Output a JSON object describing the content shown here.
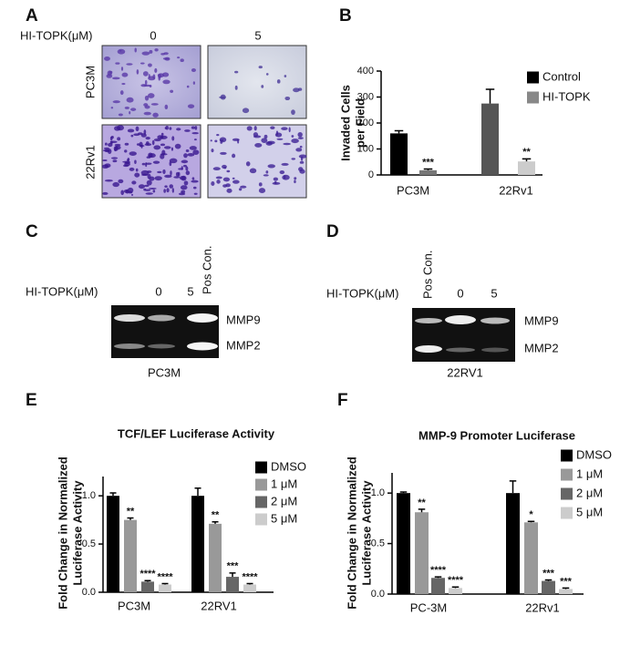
{
  "panels": {
    "A": {
      "letter": "A",
      "treatment_label": "HI-TOPK(μM)",
      "doses": [
        "0",
        "5"
      ],
      "rows": [
        "PC3M",
        "22Rv1"
      ]
    },
    "C": {
      "letter": "C",
      "treatment_label": "HI-TOPK(μM)",
      "lanes": [
        "0",
        "5",
        "Pos Con."
      ],
      "bands": [
        "MMP9",
        "MMP2"
      ],
      "caption": "PC3M"
    },
    "D": {
      "letter": "D",
      "treatment_label": "HI-TOPK(μM)",
      "lanes": [
        "Pos Con.",
        "0",
        "5"
      ],
      "bands": [
        "MMP9",
        "MMP2"
      ],
      "caption": "22RV1"
    }
  },
  "chart_data": [
    {
      "type": "bar",
      "letter": "B",
      "y_label": [
        "Invaded Cells",
        "per Field"
      ],
      "categories": [
        "PC3M",
        "22Rv1"
      ],
      "ylim": [
        0,
        400
      ],
      "yticks": [
        0,
        100,
        200,
        300,
        400
      ],
      "series": [
        {
          "name": "Control",
          "color": "#000000",
          "colors": [
            "#000000",
            "#555555"
          ],
          "values": [
            160,
            275
          ],
          "errors": [
            10,
            55
          ],
          "significance": [
            null,
            null
          ]
        },
        {
          "name": "HI-TOPK",
          "color": "#888888",
          "colors": [
            "#777777",
            "#cccccc"
          ],
          "values": [
            18,
            52
          ],
          "errors": [
            5,
            10
          ],
          "significance": [
            "***",
            "**"
          ]
        }
      ]
    },
    {
      "type": "bar",
      "letter": "E",
      "title": "TCF/LEF Luciferase Activity",
      "y_label": [
        "Fold Change in Normalized",
        "Luciferase Activity"
      ],
      "categories": [
        "PC3M",
        "22RV1"
      ],
      "ylim": [
        0,
        1.2
      ],
      "yticks": [
        {
          "value": 0,
          "label": "0.0"
        },
        0.5,
        {
          "value": 1,
          "label": "1.0"
        }
      ],
      "series": [
        {
          "name": "DMSO",
          "color": "#000000",
          "values": [
            1.0,
            1.0
          ],
          "errors": [
            0.03,
            0.08
          ],
          "significance": [
            null,
            null
          ]
        },
        {
          "name": "1 μM",
          "color": "#999999",
          "values": [
            0.75,
            0.71
          ],
          "errors": [
            0.02,
            0.02
          ],
          "significance": [
            "**",
            "**"
          ]
        },
        {
          "name": "2 μM",
          "color": "#666666",
          "values": [
            0.11,
            0.16
          ],
          "errors": [
            0.01,
            0.04
          ],
          "significance": [
            "****",
            "***"
          ]
        },
        {
          "name": "5 μM",
          "color": "#cccccc",
          "values": [
            0.08,
            0.08
          ],
          "errors": [
            0.01,
            0.01
          ],
          "significance": [
            "****",
            "****"
          ]
        }
      ]
    },
    {
      "type": "bar",
      "letter": "F",
      "title": "MMP-9 Promoter Luciferase",
      "y_label": [
        "Fold Change in Normalized",
        "Luciferase Activity"
      ],
      "categories": [
        "PC-3M",
        "22Rv1"
      ],
      "ylim": [
        0,
        1.2
      ],
      "yticks": [
        {
          "value": 0,
          "label": "0.0"
        },
        0.5,
        {
          "value": 1,
          "label": "1.0"
        }
      ],
      "series": [
        {
          "name": "DMSO",
          "color": "#000000",
          "values": [
            1.0,
            1.0
          ],
          "errors": [
            0.01,
            0.12
          ],
          "significance": [
            null,
            null
          ]
        },
        {
          "name": "1 μM",
          "color": "#999999",
          "values": [
            0.81,
            0.71
          ],
          "errors": [
            0.03,
            0.01
          ],
          "significance": [
            "**",
            "*"
          ]
        },
        {
          "name": "2 μM",
          "color": "#666666",
          "values": [
            0.16,
            0.13
          ],
          "errors": [
            0.01,
            0.01
          ],
          "significance": [
            "****",
            "***"
          ]
        },
        {
          "name": "5 μM",
          "color": "#cccccc",
          "values": [
            0.06,
            0.05
          ],
          "errors": [
            0.01,
            0.01
          ],
          "significance": [
            "****",
            "***"
          ]
        }
      ]
    }
  ]
}
